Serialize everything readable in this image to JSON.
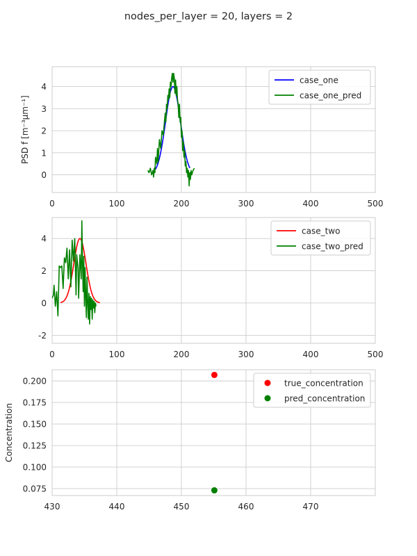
{
  "figure": {
    "title": "nodes_per_layer = 20, layers = 2"
  },
  "chart_data": [
    {
      "type": "line",
      "ylabel": "PSD f [m⁻³μm⁻¹]",
      "xlim": [
        0,
        500
      ],
      "ylim": [
        -0.8,
        4.9
      ],
      "xticks": [
        0,
        100,
        200,
        300,
        400,
        500
      ],
      "yticks": [
        0,
        1,
        2,
        3,
        4
      ],
      "grid": true,
      "legend_position": "top-right",
      "series": [
        {
          "name": "case_one",
          "color": "#0000ff",
          "gaussian": {
            "center": 187,
            "sigma": 11.5,
            "amplitude": 4.0,
            "xmin": 160,
            "xmax": 213,
            "samples": 60
          }
        },
        {
          "name": "case_one_pred",
          "color": "#008000",
          "x": [
            148,
            150,
            152,
            154,
            156,
            157,
            158,
            159,
            160,
            162,
            163,
            164,
            166,
            168,
            170,
            172,
            174,
            175,
            176,
            177,
            178,
            179,
            180,
            181,
            182,
            183,
            184,
            185,
            186,
            187,
            188,
            189,
            190,
            191,
            192,
            193,
            194,
            195,
            196,
            197,
            198,
            199,
            200,
            201,
            202,
            203,
            204,
            205,
            206,
            207,
            208,
            209,
            210,
            211,
            212,
            213,
            214,
            215,
            216,
            218,
            220
          ],
          "y": [
            0.2,
            0.1,
            0.3,
            0.0,
            0.2,
            -0.1,
            0.3,
            0.1,
            0.8,
            0.5,
            1.2,
            0.6,
            1.6,
            1.2,
            2.0,
            1.8,
            2.5,
            2.8,
            2.4,
            3.2,
            3.0,
            3.6,
            3.4,
            3.9,
            3.5,
            4.2,
            4.0,
            4.4,
            4.6,
            4.2,
            4.6,
            4.4,
            3.7,
            4.3,
            3.6,
            4.0,
            3.4,
            3.2,
            2.6,
            3.2,
            2.4,
            2.6,
            1.7,
            2.0,
            1.1,
            1.5,
            0.8,
            1.1,
            0.4,
            0.6,
            0.1,
            0.3,
            -0.1,
            0.2,
            -0.5,
            0.1,
            -0.2,
            0.2,
            0.0,
            0.2,
            0.3
          ]
        }
      ]
    },
    {
      "type": "line",
      "xlim": [
        0,
        500
      ],
      "ylim": [
        -2.5,
        5.3
      ],
      "xticks": [
        0,
        100,
        200,
        300,
        400,
        500
      ],
      "yticks": [
        -2,
        0,
        2,
        4
      ],
      "grid": true,
      "legend_position": "top-right",
      "series": [
        {
          "name": "case_two",
          "color": "#ff0000",
          "gaussian": {
            "center": 43,
            "sigma": 9.5,
            "amplitude": 4.0,
            "xmin": 13,
            "xmax": 74,
            "samples": 60
          }
        },
        {
          "name": "case_two_pred",
          "color": "#008000",
          "x": [
            0,
            2,
            3,
            5,
            7,
            9,
            11,
            13,
            15,
            17,
            19,
            21,
            23,
            25,
            27,
            29,
            31,
            33,
            35,
            37,
            38,
            40,
            41,
            43,
            45,
            46,
            47,
            48,
            49,
            50,
            51,
            52,
            53,
            54,
            55,
            56,
            57,
            58,
            59,
            60,
            61,
            62,
            63,
            64,
            65,
            66,
            67,
            68
          ],
          "y": [
            0.3,
            0.5,
            1.1,
            -0.2,
            0.7,
            -0.8,
            2.3,
            2.2,
            2.3,
            0.9,
            2.8,
            2.5,
            3.4,
            1.5,
            3.3,
            1.0,
            3.9,
            2.6,
            4.0,
            0.5,
            3.0,
            2.2,
            0.3,
            3.0,
            1.5,
            5.1,
            2.5,
            0.7,
            2.9,
            -0.2,
            2.2,
            0.4,
            -0.9,
            1.6,
            0.1,
            -1.0,
            0.6,
            -1.3,
            0.4,
            -0.4,
            0.3,
            -1.0,
            0.2,
            -0.3,
            0.1,
            -0.6,
            0.0,
            -0.2
          ]
        }
      ]
    },
    {
      "type": "scatter",
      "ylabel": "Concentration",
      "xlim": [
        430,
        480
      ],
      "ylim": [
        0.067,
        0.213
      ],
      "xticks": [
        430,
        440,
        450,
        460,
        470
      ],
      "yticks": [
        0.075,
        0.1,
        0.125,
        0.15,
        0.175,
        0.2
      ],
      "ytick_labels": [
        "0.075",
        "0.100",
        "0.125",
        "0.150",
        "0.175",
        "0.200"
      ],
      "grid": true,
      "legend_position": "top-right",
      "series": [
        {
          "name": "true_concentration",
          "color": "#ff0000",
          "x": [
            455.1
          ],
          "y": [
            0.207
          ]
        },
        {
          "name": "pred_concentration",
          "color": "#008000",
          "x": [
            455.1
          ],
          "y": [
            0.073
          ]
        }
      ]
    }
  ]
}
